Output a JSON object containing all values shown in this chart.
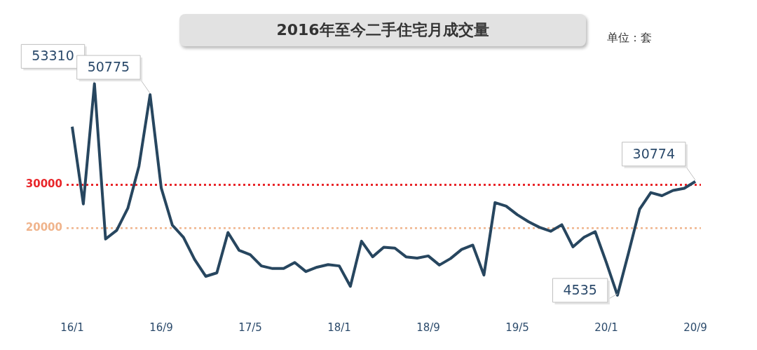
{
  "chart_data": {
    "type": "line",
    "title": "2016年至今二手住宅月成交量",
    "annotations": [
      "单位：套"
    ],
    "categories": [
      "16/1",
      null,
      null,
      null,
      null,
      null,
      null,
      null,
      "16/9",
      null,
      null,
      null,
      null,
      null,
      null,
      null,
      "17/5",
      null,
      null,
      null,
      null,
      null,
      null,
      null,
      "18/1",
      null,
      null,
      null,
      null,
      null,
      null,
      null,
      "18/9",
      null,
      null,
      null,
      null,
      null,
      null,
      null,
      "19/5",
      null,
      null,
      null,
      null,
      null,
      null,
      null,
      "20/1",
      null,
      null,
      null,
      null,
      null,
      null,
      null,
      "20/9"
    ],
    "series": [
      {
        "color": "#27465f",
        "values": [
          43400,
          25600,
          53310,
          17500,
          19500,
          24600,
          34300,
          50775,
          29300,
          20700,
          17900,
          12800,
          8900,
          9700,
          19000,
          14900,
          13900,
          11300,
          10700,
          10700,
          12100,
          10000,
          11000,
          11600,
          11300,
          6600,
          17000,
          13400,
          15600,
          15400,
          13400,
          13100,
          13600,
          11500,
          13000,
          15100,
          16100,
          9200,
          25900,
          25100,
          23100,
          21500,
          20200,
          19300,
          20800,
          15700,
          17900,
          19200,
          12100,
          4535,
          14300,
          24400,
          28200,
          27500,
          28700,
          29200,
          30774
        ],
        "value_labels": [
          null,
          null,
          "53310",
          null,
          null,
          null,
          null,
          "50775",
          null,
          null,
          null,
          null,
          null,
          null,
          null,
          null,
          null,
          null,
          null,
          null,
          null,
          null,
          null,
          null,
          null,
          null,
          null,
          null,
          null,
          null,
          null,
          null,
          null,
          null,
          null,
          null,
          null,
          null,
          null,
          null,
          null,
          null,
          null,
          null,
          null,
          null,
          null,
          null,
          null,
          "4535",
          null,
          null,
          null,
          null,
          null,
          null,
          "30774"
        ]
      }
    ],
    "ref_lines": [
      {
        "axis": "y",
        "value": 30000,
        "label": "30000",
        "color": "#e8262a",
        "line_style": "dotted"
      },
      {
        "axis": "y",
        "value": 20000,
        "label": "20000",
        "color": "#f0b48c",
        "line_style": "dotted"
      }
    ],
    "grid": false,
    "legend": false,
    "marker": "none",
    "line_style": "solid"
  }
}
